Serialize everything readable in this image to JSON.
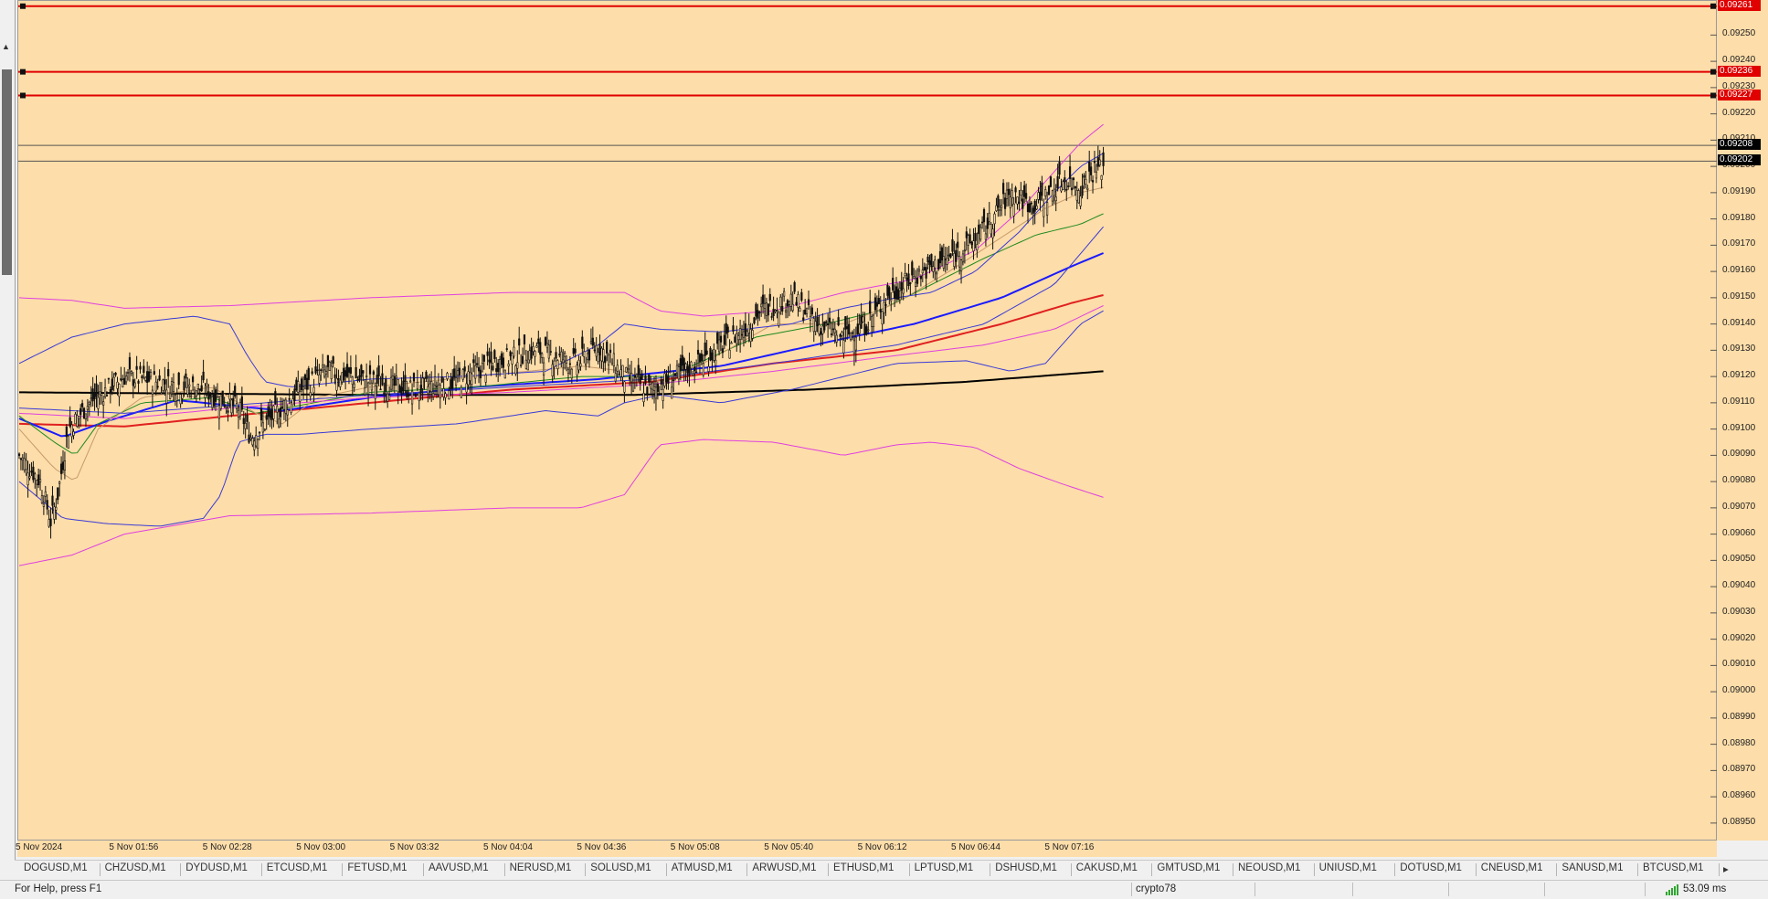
{
  "chart_data": {
    "type": "candlestick",
    "price_labels": [
      "0.09250",
      "0.09240",
      "0.09230",
      "0.09220",
      "0.09210",
      "0.09200",
      "0.09190",
      "0.09180",
      "0.09170",
      "0.09160",
      "0.09150",
      "0.09140",
      "0.09130",
      "0.09120",
      "0.09110",
      "0.09100",
      "0.09090",
      "0.09080",
      "0.09070",
      "0.09060",
      "0.09050",
      "0.09040",
      "0.09030",
      "0.09020",
      "0.09010",
      "0.09000",
      "0.08990",
      "0.08980",
      "0.08970",
      "0.08960",
      "0.08950"
    ],
    "time_labels": [
      "5 Nov 2024",
      "5 Nov 01:56",
      "5 Nov 02:28",
      "5 Nov 03:00",
      "5 Nov 03:32",
      "5 Nov 04:04",
      "5 Nov 04:36",
      "5 Nov 05:08",
      "5 Nov 05:40",
      "5 Nov 06:12",
      "5 Nov 06:44",
      "5 Nov 07:16"
    ],
    "ylim": [
      0.08943,
      0.09263
    ],
    "horizontal_levels": [
      {
        "price": 0.09261,
        "label": "0.09261",
        "color": "#e00000"
      },
      {
        "price": 0.09236,
        "label": "0.09236",
        "color": "#e00000"
      },
      {
        "price": 0.09227,
        "label": "0.09227",
        "color": "#e00000"
      }
    ],
    "price_tags": [
      {
        "price": 0.09208,
        "label": "0.09208",
        "color": "#000000"
      },
      {
        "price": 0.09202,
        "label": "0.09202",
        "color": "#000000"
      }
    ],
    "candle_count": 370,
    "close_path": [
      [
        0,
        0.0909
      ],
      [
        12,
        0.0908
      ],
      [
        18,
        0.09065
      ],
      [
        22,
        0.09075
      ],
      [
        28,
        0.091
      ],
      [
        40,
        0.0911
      ],
      [
        60,
        0.0912
      ],
      [
        80,
        0.09118
      ],
      [
        105,
        0.09115
      ],
      [
        125,
        0.09108
      ],
      [
        132,
        0.09097
      ],
      [
        145,
        0.09105
      ],
      [
        160,
        0.09115
      ],
      [
        175,
        0.09122
      ],
      [
        200,
        0.09118
      ],
      [
        225,
        0.09115
      ],
      [
        248,
        0.09118
      ],
      [
        270,
        0.09125
      ],
      [
        295,
        0.0913
      ],
      [
        318,
        0.09125
      ],
      [
        330,
        0.09132
      ],
      [
        345,
        0.0912
      ],
      [
        360,
        0.09115
      ],
      [
        380,
        0.09122
      ],
      [
        398,
        0.0913
      ],
      [
        413,
        0.09138
      ],
      [
        423,
        0.09145
      ],
      [
        440,
        0.0915
      ],
      [
        455,
        0.0914
      ],
      [
        470,
        0.09135
      ],
      [
        483,
        0.0914
      ],
      [
        495,
        0.0915
      ],
      [
        510,
        0.09158
      ],
      [
        530,
        0.09165
      ],
      [
        545,
        0.09172
      ],
      [
        555,
        0.0918
      ],
      [
        565,
        0.0919
      ],
      [
        578,
        0.09185
      ],
      [
        588,
        0.0919
      ],
      [
        595,
        0.09195
      ],
      [
        605,
        0.09192
      ],
      [
        612,
        0.09198
      ],
      [
        618,
        0.092
      ]
    ],
    "indicators": [
      {
        "color": "#000000",
        "path": [
          [
            0,
            0.09114
          ],
          [
            200,
            0.09113
          ],
          [
            350,
            0.09113
          ],
          [
            450,
            0.09115
          ],
          [
            540,
            0.09118
          ],
          [
            618,
            0.09122
          ]
        ]
      },
      {
        "color": "#e02020",
        "path": [
          [
            0,
            0.09102
          ],
          [
            60,
            0.09101
          ],
          [
            120,
            0.09105
          ],
          [
            200,
            0.0911
          ],
          [
            280,
            0.09115
          ],
          [
            360,
            0.09118
          ],
          [
            430,
            0.09125
          ],
          [
            500,
            0.0913
          ],
          [
            560,
            0.0914
          ],
          [
            600,
            0.09148
          ],
          [
            618,
            0.09151
          ]
        ]
      },
      {
        "color": "#1a1aff",
        "path": [
          [
            0,
            0.09104
          ],
          [
            25,
            0.09097
          ],
          [
            50,
            0.09103
          ],
          [
            90,
            0.09111
          ],
          [
            120,
            0.09109
          ],
          [
            150,
            0.09107
          ],
          [
            200,
            0.09112
          ],
          [
            260,
            0.09116
          ],
          [
            330,
            0.09119
          ],
          [
            400,
            0.09124
          ],
          [
            460,
            0.09133
          ],
          [
            510,
            0.0914
          ],
          [
            560,
            0.0915
          ],
          [
            600,
            0.09162
          ],
          [
            618,
            0.09167
          ]
        ]
      },
      {
        "color": "#1e8a1e",
        "path": [
          [
            0,
            0.09105
          ],
          [
            20,
            0.09095
          ],
          [
            32,
            0.0909
          ],
          [
            45,
            0.09102
          ],
          [
            70,
            0.0911
          ],
          [
            110,
            0.09112
          ],
          [
            135,
            0.09106
          ],
          [
            160,
            0.09109
          ],
          [
            200,
            0.09114
          ],
          [
            260,
            0.09116
          ],
          [
            320,
            0.0912
          ],
          [
            370,
            0.0912
          ],
          [
            420,
            0.09135
          ],
          [
            460,
            0.0914
          ],
          [
            490,
            0.09145
          ],
          [
            520,
            0.09155
          ],
          [
            550,
            0.09165
          ],
          [
            580,
            0.09174
          ],
          [
            605,
            0.09178
          ],
          [
            618,
            0.09182
          ]
        ]
      },
      {
        "color": "#c69b6d",
        "path": [
          [
            0,
            0.091
          ],
          [
            20,
            0.09085
          ],
          [
            32,
            0.0908
          ],
          [
            45,
            0.091
          ],
          [
            70,
            0.09112
          ],
          [
            110,
            0.09116
          ],
          [
            135,
            0.09106
          ],
          [
            150,
            0.09102
          ],
          [
            170,
            0.09112
          ],
          [
            200,
            0.09116
          ],
          [
            260,
            0.0912
          ],
          [
            320,
            0.09124
          ],
          [
            345,
            0.09122
          ],
          [
            365,
            0.09118
          ],
          [
            390,
            0.09125
          ],
          [
            430,
            0.0914
          ],
          [
            470,
            0.0914
          ],
          [
            500,
            0.09148
          ],
          [
            530,
            0.0916
          ],
          [
            560,
            0.09173
          ],
          [
            585,
            0.09184
          ],
          [
            605,
            0.0919
          ],
          [
            618,
            0.09192
          ]
        ]
      },
      {
        "color": "#e040e0",
        "path": [
          [
            0,
            0.0915
          ],
          [
            30,
            0.09149
          ],
          [
            60,
            0.09146
          ],
          [
            120,
            0.09147
          ],
          [
            200,
            0.0915
          ],
          [
            280,
            0.09152
          ],
          [
            345,
            0.09152
          ],
          [
            365,
            0.09145
          ],
          [
            390,
            0.09143
          ],
          [
            430,
            0.09145
          ],
          [
            470,
            0.09152
          ],
          [
            510,
            0.09157
          ],
          [
            545,
            0.09168
          ],
          [
            570,
            0.09183
          ],
          [
            590,
            0.09198
          ],
          [
            605,
            0.09209
          ],
          [
            618,
            0.09216
          ]
        ]
      },
      {
        "color": "#e040e0",
        "path": [
          [
            0,
            0.09048
          ],
          [
            30,
            0.09052
          ],
          [
            60,
            0.0906
          ],
          [
            120,
            0.09067
          ],
          [
            200,
            0.09068
          ],
          [
            280,
            0.0907
          ],
          [
            320,
            0.0907
          ],
          [
            345,
            0.09075
          ],
          [
            365,
            0.09094
          ],
          [
            390,
            0.09096
          ],
          [
            430,
            0.09095
          ],
          [
            470,
            0.0909
          ],
          [
            500,
            0.09094
          ],
          [
            520,
            0.09095
          ],
          [
            545,
            0.09093
          ],
          [
            570,
            0.09085
          ],
          [
            595,
            0.09079
          ],
          [
            618,
            0.09074
          ]
        ]
      },
      {
        "color": "#e040e0",
        "path": [
          [
            0,
            0.09106
          ],
          [
            60,
            0.09104
          ],
          [
            120,
            0.09108
          ],
          [
            200,
            0.09112
          ],
          [
            280,
            0.09114
          ],
          [
            360,
            0.09117
          ],
          [
            430,
            0.09122
          ],
          [
            500,
            0.09128
          ],
          [
            550,
            0.09132
          ],
          [
            590,
            0.09138
          ],
          [
            618,
            0.09147
          ]
        ]
      },
      {
        "color": "#3a3ad8",
        "path": [
          [
            0,
            0.09125
          ],
          [
            30,
            0.09135
          ],
          [
            60,
            0.0914
          ],
          [
            100,
            0.09143
          ],
          [
            120,
            0.0914
          ],
          [
            130,
            0.09128
          ],
          [
            140,
            0.09118
          ],
          [
            155,
            0.09116
          ],
          [
            170,
            0.09117
          ],
          [
            200,
            0.09119
          ],
          [
            250,
            0.0912
          ],
          [
            300,
            0.09122
          ],
          [
            330,
            0.09132
          ],
          [
            345,
            0.0914
          ],
          [
            365,
            0.09138
          ],
          [
            400,
            0.09137
          ],
          [
            440,
            0.0914
          ],
          [
            470,
            0.09146
          ],
          [
            500,
            0.0915
          ],
          [
            520,
            0.09152
          ],
          [
            545,
            0.0916
          ],
          [
            570,
            0.09175
          ],
          [
            590,
            0.0919
          ],
          [
            605,
            0.092
          ],
          [
            618,
            0.09205
          ]
        ]
      },
      {
        "color": "#3a3ad8",
        "path": [
          [
            0,
            0.0908
          ],
          [
            25,
            0.09066
          ],
          [
            50,
            0.09064
          ],
          [
            80,
            0.09063
          ],
          [
            105,
            0.09066
          ],
          [
            115,
            0.09075
          ],
          [
            125,
            0.09095
          ],
          [
            140,
            0.09098
          ],
          [
            160,
            0.09098
          ],
          [
            200,
            0.091
          ],
          [
            250,
            0.09102
          ],
          [
            300,
            0.09107
          ],
          [
            330,
            0.09105
          ],
          [
            345,
            0.0911
          ],
          [
            365,
            0.09113
          ],
          [
            400,
            0.0911
          ],
          [
            440,
            0.09115
          ],
          [
            470,
            0.0912
          ],
          [
            500,
            0.09125
          ],
          [
            540,
            0.09126
          ],
          [
            565,
            0.09122
          ],
          [
            585,
            0.09125
          ],
          [
            605,
            0.0914
          ],
          [
            618,
            0.09145
          ]
        ]
      },
      {
        "color": "#3a3ad8",
        "path": [
          [
            0,
            0.09108
          ],
          [
            60,
            0.09106
          ],
          [
            120,
            0.09109
          ],
          [
            200,
            0.09113
          ],
          [
            280,
            0.09116
          ],
          [
            360,
            0.09119
          ],
          [
            430,
            0.09125
          ],
          [
            500,
            0.09132
          ],
          [
            550,
            0.0914
          ],
          [
            590,
            0.09155
          ],
          [
            618,
            0.09177
          ]
        ]
      }
    ]
  },
  "tabs": [
    "DOGUSD,M1",
    "CHZUSD,M1",
    "DYDUSD,M1",
    "ETCUSD,M1",
    "FETUSD,M1",
    "AAVUSD,M1",
    "NERUSD,M1",
    "SOLUSD,M1",
    "ATMUSD,M1",
    "ARWUSD,M1",
    "ETHUSD,M1",
    "LPTUSD,M1",
    "DSHUSD,M1",
    "CAKUSD,M1",
    "GMTUSD,M1",
    "NEOUSD,M1",
    "UNIUSD,M1",
    "DOTUSD,M1",
    "CNEUSD,M1",
    "SANUSD,M1",
    "BTCUSD,M1"
  ],
  "status": {
    "help": "For Help, press F1",
    "profile": "crypto78",
    "ping": "53.09 ms"
  }
}
